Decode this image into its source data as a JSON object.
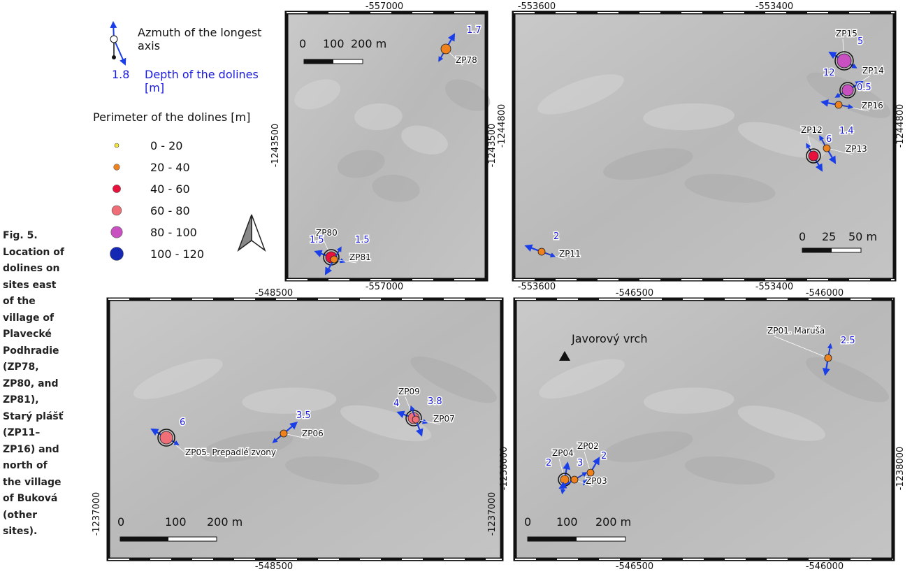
{
  "caption": {
    "figure": "Fig. 5.",
    "text": "Location of dolines on sites east of the village of Plavecké Podhradie (ZP78, ZP80, and ZP81), Starý plášť (ZP11–ZP16) and north of the village of Buková (other sites)."
  },
  "legend": {
    "azimuth": "Azmuth of the longest axis",
    "depth_example": "1.8",
    "depth": "Depth of the dolines [m]",
    "perimeter_title": "Perimeter of the dolines [m]",
    "classes": [
      {
        "label": "0 - 20",
        "color": "#f0e62e"
      },
      {
        "label": "20 - 40",
        "color": "#f0821e"
      },
      {
        "label": "40 - 60",
        "color": "#e8123c"
      },
      {
        "label": "60 - 80",
        "color": "#f06e78"
      },
      {
        "label": "80 - 100",
        "color": "#c850c0"
      },
      {
        "label": "100 - 120",
        "color": "#1428b4"
      }
    ]
  },
  "maps": [
    {
      "top": [
        "-557000"
      ],
      "bottom": [
        "-557000"
      ],
      "left": "-1243500",
      "right": "-1243500",
      "scale": [
        "0",
        "100",
        "200 m"
      ],
      "dolines": [
        {
          "name": "ZP78",
          "depth": "1.7",
          "color": "#f0821e"
        },
        {
          "name": "ZP80",
          "depth": "1.5",
          "color": "#e8123c"
        },
        {
          "name": "ZP81",
          "depth": "1.5",
          "color": "#f0821e"
        }
      ]
    },
    {
      "top": [
        "-553600",
        "-553400"
      ],
      "bottom": [
        "-553600",
        "-553400"
      ],
      "left": "-1244800",
      "right": "-1244800",
      "scale": [
        "0",
        "25",
        "50 m"
      ],
      "dolines": [
        {
          "name": "ZP15",
          "depth": "5",
          "color": "#c850c0"
        },
        {
          "name": "ZP14",
          "depth": "0.5",
          "color": "#c850c0"
        },
        {
          "name": "ZP16",
          "depth": "12",
          "color": "#f0821e"
        },
        {
          "name": "ZP12",
          "depth": "6",
          "color": "#e8123c"
        },
        {
          "name": "ZP13",
          "depth": "1.4",
          "color": "#f0821e"
        },
        {
          "name": "ZP11",
          "depth": "2",
          "color": "#f0821e"
        }
      ]
    },
    {
      "top": [
        "-548500"
      ],
      "bottom": [
        "-548500"
      ],
      "left": "-1237000",
      "right": "-1237000",
      "scale": [
        "0",
        "100",
        "200 m"
      ],
      "dolines": [
        {
          "name": "ZP05. Prepadlé zvony",
          "depth": "6",
          "color": "#f06e78"
        },
        {
          "name": "ZP06",
          "depth": "3.5",
          "color": "#f0821e"
        },
        {
          "name": "ZP09",
          "depth": "4",
          "color": "#f06e78"
        },
        {
          "name": "ZP07",
          "depth": "3.8",
          "color": "#f06e78"
        }
      ]
    },
    {
      "top": [
        "-546500",
        "-546000"
      ],
      "bottom": [
        "-546500",
        "-546000"
      ],
      "left": "-1238000",
      "right": "-1238000",
      "scale": [
        "0",
        "100",
        "200 m"
      ],
      "peak": "Javorový vrch",
      "dolines": [
        {
          "name": "ZP01. Maruša",
          "depth": "2.5",
          "color": "#f0821e"
        },
        {
          "name": "ZP04",
          "depth": "2",
          "color": "#f0821e"
        },
        {
          "name": "ZP02",
          "depth": "2",
          "color": "#f0821e"
        },
        {
          "name": "ZP03",
          "depth": "3",
          "color": "#f0821e"
        }
      ]
    }
  ]
}
